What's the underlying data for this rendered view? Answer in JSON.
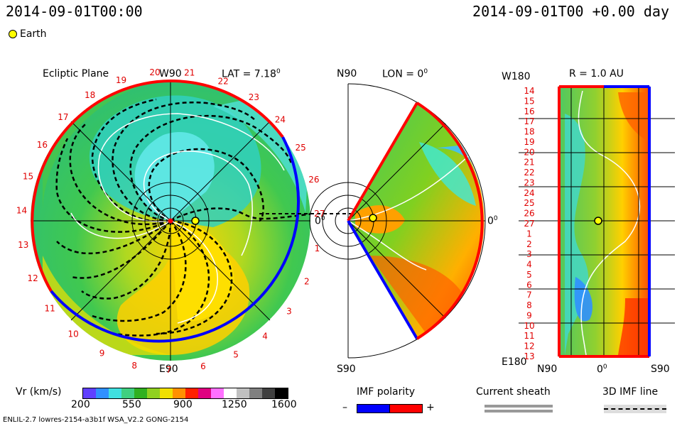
{
  "header": {
    "timestamp": "2014-09-01T00:00",
    "right_title": "2014-09-01T00 +0.00 day",
    "legend_earth": "Earth"
  },
  "panels": {
    "ecliptic": {
      "title": "Ecliptic Plane",
      "top": "W90",
      "bottom": "E90",
      "right": "0",
      "right_sup": "0",
      "lat_label": "LAT = 7.18",
      "lat_sup": "0"
    },
    "meridional": {
      "top": "N90",
      "bottom": "S90",
      "lon_label": "LON = 0",
      "lon_sup": "0",
      "right": "0",
      "right_sup": "0"
    },
    "radial": {
      "title": "R = 1.0 AU",
      "top_left": "W180",
      "bottom_left": "E180",
      "bottom_left2": "N90",
      "bottom_mid": "0",
      "bottom_mid_sup": "0",
      "bottom_right": "S90"
    }
  },
  "carrington_ecliptic": [
    "20",
    "21",
    "22",
    "23",
    "24",
    "25",
    "26",
    "27",
    "1",
    "2",
    "3",
    "4",
    "5",
    "6",
    "7",
    "8",
    "9",
    "10",
    "11",
    "12",
    "13",
    "14",
    "15",
    "16",
    "17",
    "18",
    "19"
  ],
  "carrington_radial": [
    "14",
    "15",
    "16",
    "17",
    "18",
    "19",
    "20",
    "21",
    "22",
    "23",
    "24",
    "25",
    "26",
    "27",
    "1",
    "2",
    "3",
    "4",
    "5",
    "6",
    "7",
    "8",
    "9",
    "10",
    "11",
    "12",
    "13"
  ],
  "colorbar": {
    "label": "Vr (km/s)",
    "ticks": [
      "200",
      "550",
      "900",
      "1250",
      "1600"
    ],
    "colors": [
      "#6040ff",
      "#3090ff",
      "#40e0e0",
      "#40d080",
      "#30b020",
      "#90d020",
      "#f0e000",
      "#ff9000",
      "#ff2000",
      "#e00080",
      "#ff70ff",
      "#ffffff",
      "#c0c0c0",
      "#808080",
      "#404040",
      "#000000"
    ]
  },
  "legends": {
    "imf_title": "IMF polarity",
    "imf_minus": "–",
    "imf_plus": "+",
    "sheath_title": "Current sheath",
    "imf3d_title": "3D IMF line"
  },
  "footer": {
    "model": "ENLIL-2.7 lowres-2154-a3b1f WSA_V2.2 GONG-2154"
  },
  "colors": {
    "positive": "#ff0000",
    "negative": "#0000ff",
    "earth": "#ffff00"
  }
}
